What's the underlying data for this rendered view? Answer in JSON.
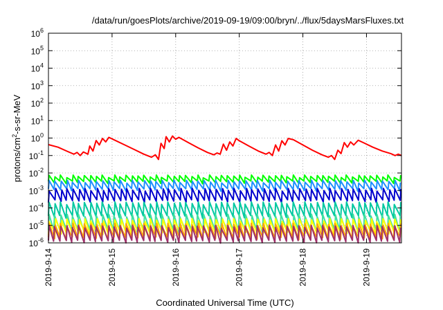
{
  "chart_data": {
    "type": "line",
    "title": "/data/run/goesPlots/archive/2019-09-19/09:00/bryn/../flux/5daysMarsFluxes.txt",
    "xlabel": "Coordinated Universal Time (UTC)",
    "ylabel": "protons/cm²-s-sr-MeV",
    "x_ticks": [
      "2019-9-14",
      "2019-9-15",
      "2019-9-16",
      "2019-9-17",
      "2019-9-18",
      "2019-9-19"
    ],
    "x_range_days": [
      0,
      5.55
    ],
    "y_scale": "log",
    "ylim": [
      1e-06,
      1000000.0
    ],
    "y_ticks": [
      {
        "base": "10",
        "exp": "-6",
        "value": 1e-06
      },
      {
        "base": "10",
        "exp": "-5",
        "value": 1e-05
      },
      {
        "base": "10",
        "exp": "-4",
        "value": 0.0001
      },
      {
        "base": "10",
        "exp": "-3",
        "value": 0.001
      },
      {
        "base": "10",
        "exp": "-2",
        "value": 0.01
      },
      {
        "base": "10",
        "exp": "-1",
        "value": 0.1
      },
      {
        "base": "10",
        "exp": "0",
        "value": 1
      },
      {
        "base": "10",
        "exp": "1",
        "value": 10
      },
      {
        "base": "10",
        "exp": "2",
        "value": 100
      },
      {
        "base": "10",
        "exp": "3",
        "value": 1000
      },
      {
        "base": "10",
        "exp": "4",
        "value": 10000
      },
      {
        "base": "10",
        "exp": "5",
        "value": 100000
      },
      {
        "base": "10",
        "exp": "6",
        "value": 1000000
      }
    ],
    "grid": true,
    "series": [
      {
        "color": "#ff0000",
        "points": [
          [
            0.0,
            0.42
          ],
          [
            0.15,
            0.3
          ],
          [
            0.3,
            0.17
          ],
          [
            0.4,
            0.12
          ],
          [
            0.45,
            0.15
          ],
          [
            0.5,
            0.1
          ],
          [
            0.55,
            0.16
          ],
          [
            0.62,
            0.12
          ],
          [
            0.65,
            0.35
          ],
          [
            0.7,
            0.18
          ],
          [
            0.75,
            0.72
          ],
          [
            0.8,
            0.4
          ],
          [
            0.85,
            0.95
          ],
          [
            0.9,
            0.6
          ],
          [
            0.95,
            1.1
          ],
          [
            1.0,
            0.9
          ],
          [
            1.2,
            0.4
          ],
          [
            1.35,
            0.22
          ],
          [
            1.5,
            0.12
          ],
          [
            1.62,
            0.08
          ],
          [
            1.68,
            0.11
          ],
          [
            1.73,
            0.06
          ],
          [
            1.77,
            0.5
          ],
          [
            1.82,
            0.25
          ],
          [
            1.85,
            1.2
          ],
          [
            1.9,
            0.6
          ],
          [
            1.95,
            1.3
          ],
          [
            2.0,
            0.85
          ],
          [
            2.05,
            1.1
          ],
          [
            2.2,
            0.55
          ],
          [
            2.35,
            0.28
          ],
          [
            2.5,
            0.15
          ],
          [
            2.6,
            0.11
          ],
          [
            2.65,
            0.14
          ],
          [
            2.7,
            0.12
          ],
          [
            2.75,
            0.45
          ],
          [
            2.8,
            0.2
          ],
          [
            2.85,
            0.6
          ],
          [
            2.9,
            0.35
          ],
          [
            2.95,
            0.95
          ],
          [
            3.0,
            0.7
          ],
          [
            3.15,
            0.35
          ],
          [
            3.3,
            0.18
          ],
          [
            3.42,
            0.12
          ],
          [
            3.47,
            0.15
          ],
          [
            3.52,
            0.1
          ],
          [
            3.57,
            0.4
          ],
          [
            3.62,
            0.18
          ],
          [
            3.67,
            0.7
          ],
          [
            3.72,
            0.4
          ],
          [
            3.77,
            0.95
          ],
          [
            3.85,
            0.8
          ],
          [
            4.0,
            0.4
          ],
          [
            4.15,
            0.2
          ],
          [
            4.3,
            0.11
          ],
          [
            4.4,
            0.08
          ],
          [
            4.45,
            0.1
          ],
          [
            4.5,
            0.06
          ],
          [
            4.55,
            0.2
          ],
          [
            4.6,
            0.13
          ],
          [
            4.65,
            0.55
          ],
          [
            4.7,
            0.3
          ],
          [
            4.75,
            0.6
          ],
          [
            4.8,
            0.4
          ],
          [
            4.87,
            0.75
          ],
          [
            4.95,
            0.55
          ],
          [
            5.1,
            0.3
          ],
          [
            5.25,
            0.18
          ],
          [
            5.38,
            0.13
          ],
          [
            5.45,
            0.1
          ],
          [
            5.5,
            0.12
          ],
          [
            5.55,
            0.1
          ]
        ]
      },
      {
        "color": "#00ff00",
        "profile": "saw",
        "top": 0.007,
        "ratio": 2.2,
        "period": 0.09
      },
      {
        "color": "#1e90ff",
        "profile": "saw",
        "top": 0.0035,
        "ratio": 3.0,
        "period": 0.09
      },
      {
        "color": "#0000cd",
        "profile": "saw",
        "top": 0.0012,
        "ratio": 4.5,
        "period": 0.09
      },
      {
        "color": "#00c8a0",
        "profile": "saw",
        "top": 0.0002,
        "ratio": 6.0,
        "period": 0.09
      },
      {
        "color": "#40e0a0",
        "profile": "saw",
        "top": 4e-05,
        "ratio": 8.0,
        "period": 0.09
      },
      {
        "color": "#ffff00",
        "profile": "saw",
        "top": 2.2e-05,
        "ratio": 6.0,
        "period": 0.09
      },
      {
        "color": "#ffa500",
        "profile": "saw",
        "top": 1.2e-05,
        "ratio": 6.0,
        "period": 0.09
      },
      {
        "color": "#a0306a",
        "profile": "saw",
        "top": 9e-06,
        "ratio": 7.0,
        "period": 0.09
      }
    ]
  }
}
